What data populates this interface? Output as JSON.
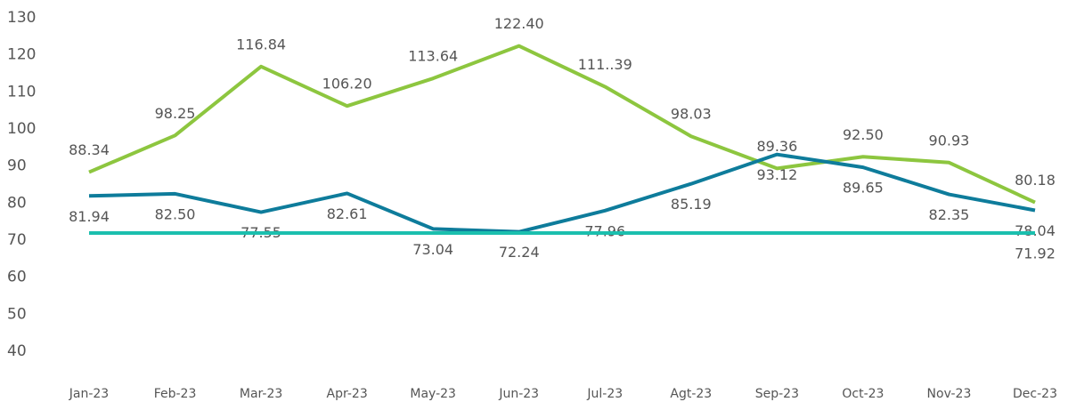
{
  "chart_data": {
    "type": "line",
    "categories": [
      "Jan-23",
      "Feb-23",
      "Mar-23",
      "Apr-23",
      "May-23",
      "Jun-23",
      "Jul-23",
      "Agt-23",
      "Sep-23",
      "Oct-23",
      "Nov-23",
      "Dec-23"
    ],
    "series": [
      {
        "color": "#8dc63f",
        "values": [
          88.34,
          98.25,
          116.84,
          106.2,
          113.64,
          122.4,
          111.39,
          98.03,
          89.36,
          92.5,
          90.93,
          80.18
        ],
        "value_labels": [
          "88.34",
          "98.25",
          "116.84",
          "106.20",
          "113.64",
          "122.40",
          "111..39",
          "98.03",
          "89.36",
          "92.50",
          "90.93",
          "80.18"
        ]
      },
      {
        "color": "#0e7c9b",
        "values": [
          81.94,
          82.5,
          77.55,
          82.61,
          73.04,
          72.24,
          77.96,
          85.19,
          93.12,
          89.65,
          82.35,
          78.04
        ],
        "value_labels": [
          "81.94",
          "82.50",
          "77.55",
          "82.61",
          "73.04",
          "72.24",
          "77.96",
          "85.19",
          "93.12",
          "89.65",
          "82.35",
          "78.04"
        ]
      },
      {
        "color": "#1bbfae",
        "values": [
          71.92,
          71.92,
          71.92,
          71.92,
          71.92,
          71.92,
          71.92,
          71.92,
          71.92,
          71.92,
          71.92,
          71.92
        ],
        "value_labels": [
          null,
          null,
          null,
          null,
          null,
          null,
          null,
          null,
          null,
          null,
          null,
          "71.92"
        ]
      }
    ],
    "ylim": [
      40,
      130
    ],
    "yticks": [
      40,
      50,
      60,
      70,
      80,
      90,
      100,
      110,
      120,
      130
    ],
    "grid": false
  }
}
